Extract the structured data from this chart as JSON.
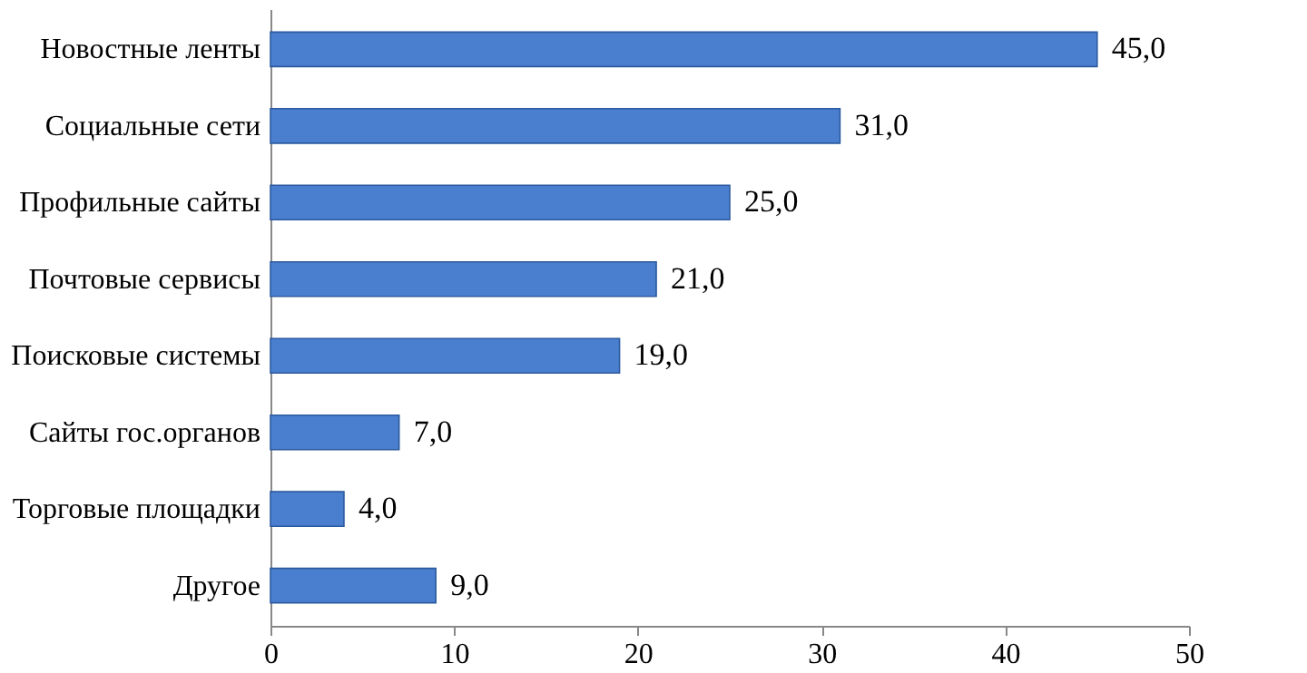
{
  "chart_data": {
    "type": "bar",
    "orientation": "horizontal",
    "categories": [
      "Новостные ленты",
      "Социальные сети",
      "Профильные сайты",
      "Почтовые сервисы",
      "Поисковые системы",
      "Сайты гос.органов",
      "Торговые площадки",
      "Другое"
    ],
    "values": [
      45,
      31,
      25,
      21,
      19,
      7,
      4,
      9
    ],
    "value_labels": [
      "45,0",
      "31,0",
      "25,0",
      "21,0",
      "19,0",
      "7,0",
      "4,0",
      "9,0"
    ],
    "color": "#4a7fd0",
    "xlim": [
      0,
      50
    ],
    "xticks": [
      0,
      10,
      20,
      30,
      40,
      50
    ],
    "grid": false
  }
}
